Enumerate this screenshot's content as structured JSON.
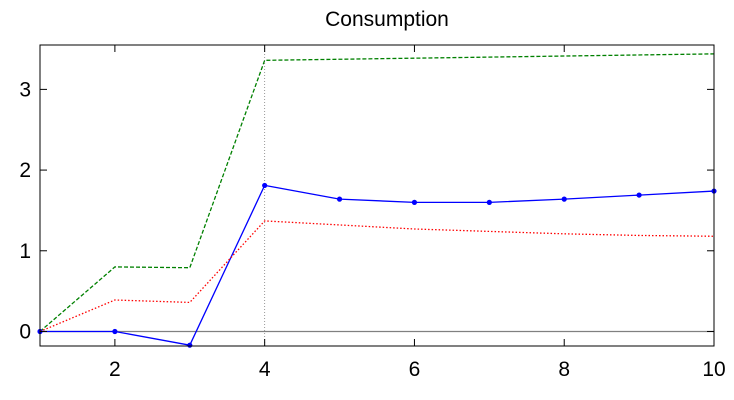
{
  "chart_data": {
    "type": "line",
    "title": "Consumption",
    "xlabel": "",
    "ylabel": "",
    "xlim": [
      1,
      10
    ],
    "ylim": [
      -0.18,
      3.55
    ],
    "xticks": [
      2,
      4,
      6,
      8,
      10
    ],
    "yticks": [
      0,
      1,
      2,
      3
    ],
    "grid": false,
    "legend": "none",
    "reference_lines": {
      "horizontal_y": 0,
      "vertical_x": 4,
      "colors": {
        "horizontal": "#808080",
        "vertical": "#808080"
      }
    },
    "series": [
      {
        "style": "dashed",
        "color": "#008000",
        "markers": false,
        "x": [
          1,
          2,
          3,
          4,
          10
        ],
        "y": [
          0.0,
          0.8,
          0.79,
          3.36,
          3.44
        ]
      },
      {
        "style": "solid",
        "color": "#0000ff",
        "markers": true,
        "x": [
          1,
          2,
          3,
          4,
          5,
          6,
          7,
          8,
          9,
          10
        ],
        "y": [
          0.0,
          0.0,
          -0.17,
          1.81,
          1.64,
          1.6,
          1.6,
          1.64,
          1.69,
          1.74
        ]
      },
      {
        "style": "dotted",
        "color": "#ff0000",
        "markers": false,
        "x": [
          1,
          2,
          3,
          4,
          5,
          6,
          7,
          8,
          9,
          10
        ],
        "y": [
          0.0,
          0.39,
          0.36,
          1.37,
          1.32,
          1.27,
          1.24,
          1.21,
          1.19,
          1.18
        ]
      }
    ]
  }
}
